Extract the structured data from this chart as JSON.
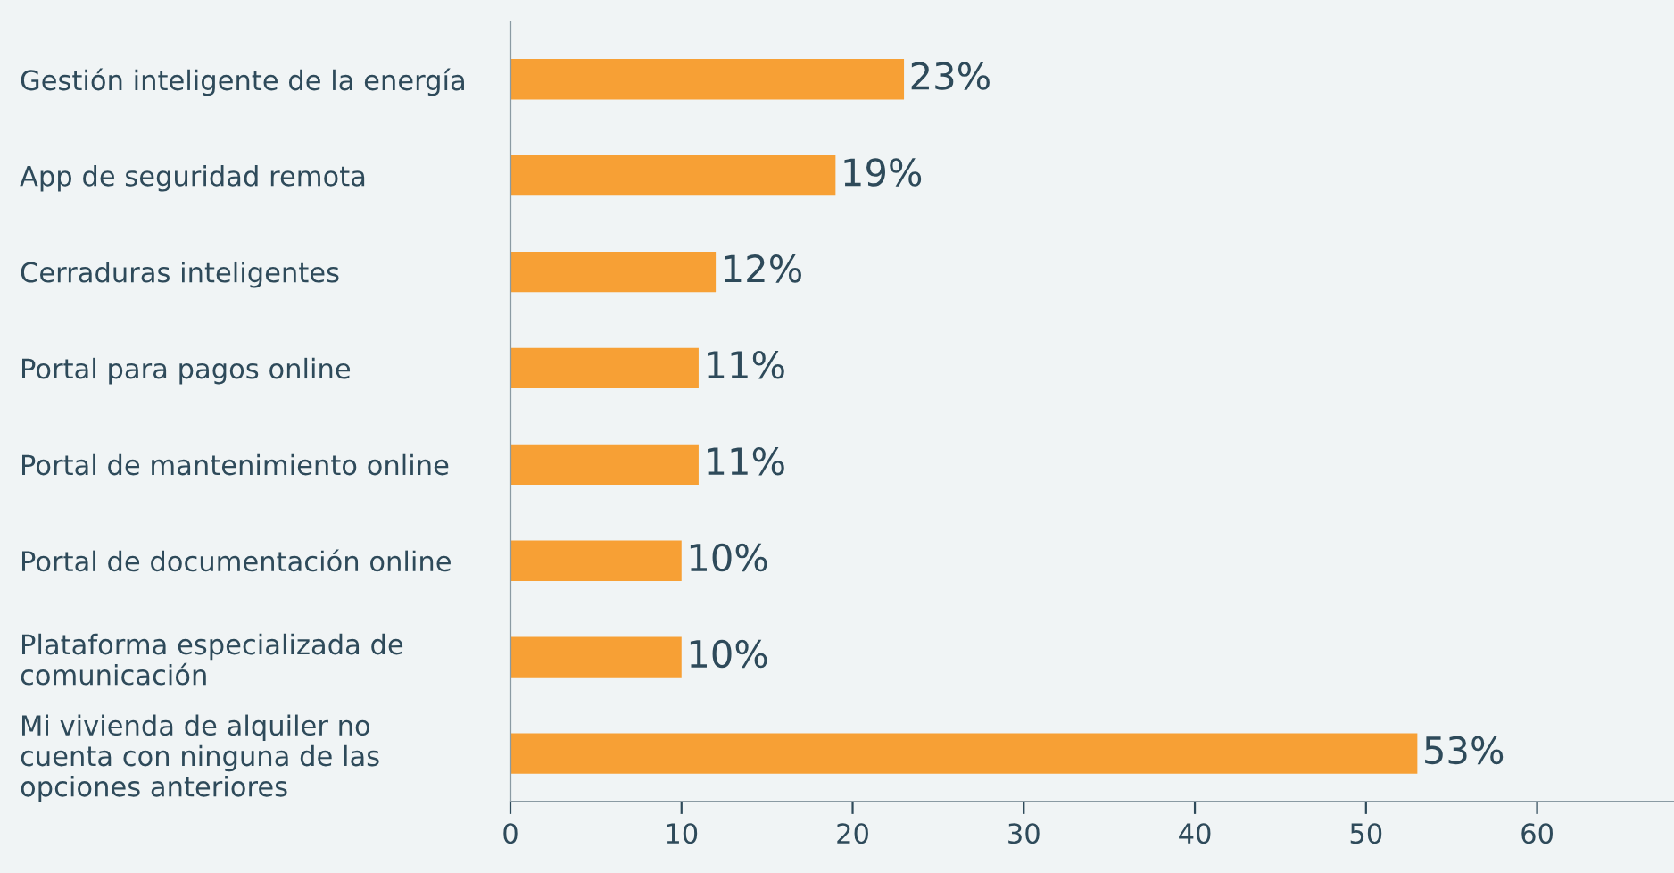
{
  "chart_data": {
    "type": "bar",
    "orientation": "horizontal",
    "categories": [
      "Gestión inteligente de la energía",
      "App de seguridad remota",
      "Cerraduras inteligentes",
      "Portal para pagos online",
      "Portal de mantenimiento online",
      "Portal de documentación online",
      "Plataforma especializada de\ncomunicación",
      "Mi vivienda de alquiler no\ncuenta con ninguna de las\nopciones anteriores"
    ],
    "values": [
      23,
      19,
      12,
      11,
      11,
      10,
      10,
      53
    ],
    "value_labels": [
      "23%",
      "19%",
      "12%",
      "11%",
      "11%",
      "10%",
      "10%",
      "53%"
    ],
    "color": "#f7a035",
    "xlim": [
      0,
      68
    ],
    "xticks": [
      0,
      10,
      20,
      30,
      40,
      50,
      60
    ],
    "grid": false,
    "legend": false
  }
}
